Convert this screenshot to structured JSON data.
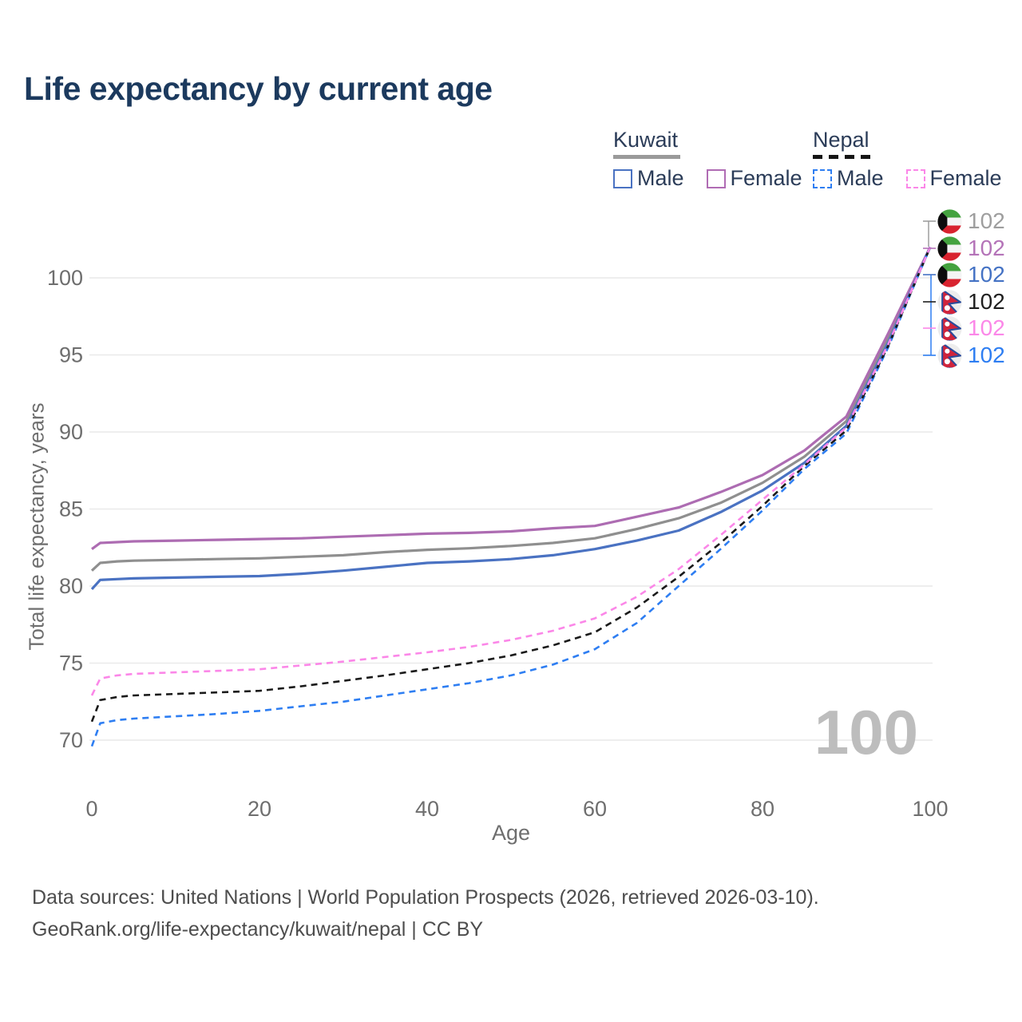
{
  "title": "Life expectancy by current age",
  "legend": {
    "groups": [
      {
        "country": "Kuwait",
        "line_style": "solid",
        "underline_color": "#9a9a9a",
        "items": [
          {
            "label": "Male",
            "color": "#4a72c2",
            "style": "solid"
          },
          {
            "label": "Female",
            "color": "#b06cb4",
            "style": "solid"
          }
        ]
      },
      {
        "country": "Nepal",
        "line_style": "dashed",
        "underline_color": "#151515",
        "items": [
          {
            "label": "Male",
            "color": "#2e7ef2",
            "style": "dashed"
          },
          {
            "label": "Female",
            "color": "#fb87e8",
            "style": "dashed"
          }
        ]
      }
    ]
  },
  "chart_data": {
    "type": "line",
    "title": "Life expectancy by current age",
    "xlabel": "Age",
    "ylabel": "Total life expectancy, years",
    "x_ticks": [
      0,
      20,
      40,
      60,
      80,
      100
    ],
    "y_ticks": [
      70,
      75,
      80,
      85,
      90,
      95,
      100
    ],
    "xlim": [
      0,
      100
    ],
    "ylim": [
      68,
      103
    ],
    "grid": "horizontal",
    "legend_position": "top-right",
    "age_indicator": "100",
    "ages": [
      0,
      1,
      3,
      5,
      10,
      15,
      20,
      25,
      30,
      35,
      40,
      45,
      50,
      55,
      60,
      65,
      70,
      75,
      80,
      85,
      90,
      95,
      100
    ],
    "series": [
      {
        "id": "kuwait-both",
        "name": "Kuwait",
        "country": "Kuwait",
        "sex": "both",
        "flag": "kuwait",
        "style": "solid",
        "color": "#8f8f8f",
        "label_color": "#9e9e9e",
        "end_label": "102",
        "values": [
          81.0,
          81.5,
          81.6,
          81.65,
          81.7,
          81.75,
          81.8,
          81.9,
          82.0,
          82.2,
          82.35,
          82.45,
          82.6,
          82.8,
          83.1,
          83.7,
          84.4,
          85.4,
          86.7,
          88.4,
          90.7,
          96.1,
          102
        ]
      },
      {
        "id": "kuwait-female",
        "name": "Kuwait Female",
        "country": "Kuwait",
        "sex": "female",
        "flag": "kuwait",
        "style": "solid",
        "color": "#ad6cb2",
        "label_color": "#b473b8",
        "end_label": "102",
        "values": [
          82.4,
          82.8,
          82.85,
          82.9,
          82.95,
          83.0,
          83.05,
          83.1,
          83.2,
          83.3,
          83.4,
          83.45,
          83.55,
          83.75,
          83.9,
          84.5,
          85.1,
          86.1,
          87.2,
          88.8,
          91.0,
          96.4,
          102
        ]
      },
      {
        "id": "kuwait-male",
        "name": "Kuwait Male",
        "country": "Kuwait",
        "sex": "male",
        "flag": "kuwait",
        "style": "solid",
        "color": "#4a72c2",
        "label_color": "#4472c4",
        "end_label": "102",
        "values": [
          79.8,
          80.4,
          80.45,
          80.5,
          80.55,
          80.6,
          80.65,
          80.8,
          81.0,
          81.25,
          81.5,
          81.6,
          81.75,
          82.0,
          82.4,
          82.95,
          83.6,
          84.8,
          86.2,
          88.0,
          90.4,
          95.8,
          102
        ]
      },
      {
        "id": "nepal-both",
        "name": "Nepal",
        "country": "Nepal",
        "sex": "both",
        "flag": "nepal",
        "style": "dashed",
        "color": "#1a1a1a",
        "label_color": "#1f1f1f",
        "end_label": "102",
        "values": [
          71.2,
          72.6,
          72.8,
          72.9,
          73.0,
          73.1,
          73.2,
          73.5,
          73.85,
          74.2,
          74.6,
          75.0,
          75.5,
          76.15,
          77.0,
          78.6,
          80.6,
          82.8,
          85.2,
          87.8,
          90.1,
          95.6,
          102
        ]
      },
      {
        "id": "nepal-female",
        "name": "Nepal Female",
        "country": "Nepal",
        "sex": "female",
        "flag": "nepal",
        "style": "dashed",
        "color": "#fb87e8",
        "label_color": "#fb87e8",
        "end_label": "102",
        "values": [
          72.9,
          74.0,
          74.2,
          74.3,
          74.4,
          74.5,
          74.6,
          74.85,
          75.1,
          75.4,
          75.7,
          76.05,
          76.5,
          77.1,
          77.9,
          79.3,
          81.1,
          83.3,
          85.6,
          87.9,
          90.3,
          95.7,
          102
        ]
      },
      {
        "id": "nepal-male",
        "name": "Nepal Male",
        "country": "Nepal",
        "sex": "male",
        "flag": "nepal",
        "style": "dashed",
        "color": "#2e7ef2",
        "label_color": "#2e7ef2",
        "end_label": "102",
        "values": [
          69.6,
          71.1,
          71.3,
          71.4,
          71.55,
          71.7,
          71.9,
          72.2,
          72.5,
          72.9,
          73.3,
          73.7,
          74.2,
          74.9,
          75.9,
          77.6,
          80.0,
          82.4,
          84.9,
          87.6,
          89.9,
          95.5,
          102
        ]
      }
    ]
  },
  "footer": {
    "line1": "Data sources: United Nations | World Population Prospects (2026, retrieved 2026-03-10).",
    "line2": "GeoRank.org/life-expectancy/kuwait/nepal | CC BY"
  }
}
